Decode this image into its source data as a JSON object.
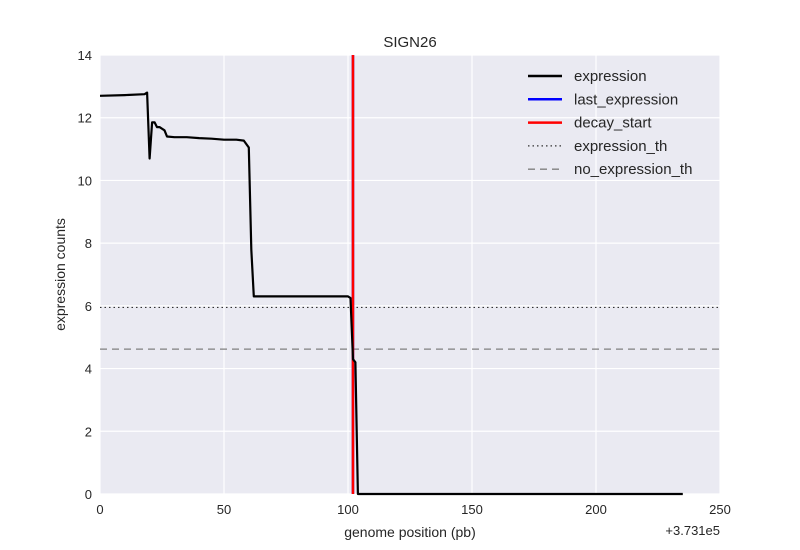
{
  "chart_data": {
    "type": "line",
    "title": "SIGN26",
    "xlabel": "genome position (pb)",
    "ylabel": "expression counts",
    "x_offset_label": "+3.731e5",
    "xlim": [
      0,
      250
    ],
    "ylim": [
      0,
      14
    ],
    "xticks": [
      "0",
      "50",
      "100",
      "150",
      "200",
      "250"
    ],
    "yticks": [
      "0",
      "2",
      "4",
      "6",
      "8",
      "10",
      "12",
      "14"
    ],
    "grid": true,
    "legend_position": "top-right",
    "colors": {
      "background": "#eaeaf2",
      "grid": "#ffffff",
      "expression": "#000000",
      "last_expression": "#0000ff",
      "decay_start": "#ff0000",
      "expression_th": "#333333",
      "no_expression_th": "#808080"
    },
    "legend": [
      {
        "name": "expression",
        "style": "solid",
        "color": "#000000"
      },
      {
        "name": "last_expression",
        "style": "solid",
        "color": "#0000ff"
      },
      {
        "name": "decay_start",
        "style": "solid",
        "color": "#ff0000"
      },
      {
        "name": "expression_th",
        "style": "dotted",
        "color": "#333333"
      },
      {
        "name": "no_expression_th",
        "style": "dashed",
        "color": "#808080"
      }
    ],
    "series": [
      {
        "name": "expression",
        "x": [
          0,
          10,
          18,
          19,
          20,
          21,
          22,
          23,
          24,
          26,
          27,
          30,
          35,
          40,
          45,
          50,
          55,
          58,
          60,
          61,
          62,
          63,
          70,
          80,
          90,
          95,
          100,
          101,
          102,
          103,
          103.5,
          104,
          110,
          150,
          200,
          235
        ],
        "y": [
          12.7,
          12.72,
          12.75,
          12.8,
          10.7,
          11.85,
          11.85,
          11.7,
          11.7,
          11.6,
          11.4,
          11.38,
          11.38,
          11.35,
          11.33,
          11.3,
          11.3,
          11.27,
          11.05,
          7.8,
          6.3,
          6.3,
          6.3,
          6.3,
          6.3,
          6.3,
          6.3,
          6.25,
          4.3,
          4.2,
          2.0,
          0.0,
          0.0,
          0.0,
          0.0,
          0.0
        ]
      },
      {
        "name": "last_expression",
        "vline_x": 102
      },
      {
        "name": "decay_start",
        "vline_x": 102
      },
      {
        "name": "expression_th",
        "hline_y": 5.95
      },
      {
        "name": "no_expression_th",
        "hline_y": 4.62
      }
    ]
  }
}
